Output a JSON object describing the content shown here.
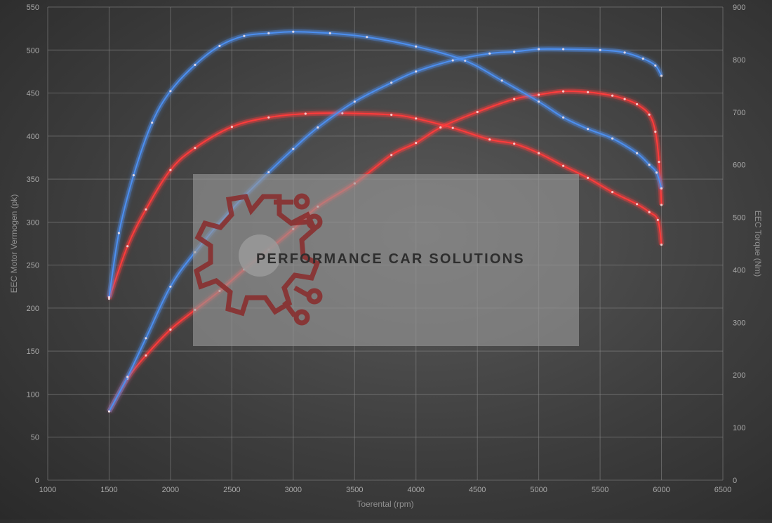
{
  "chart_data": {
    "type": "line",
    "xlabel": "Toerental (rpm)",
    "ylabel": "EEC Motor Vermogen (pk)",
    "y2label": "EEC Torque (Nm)",
    "xlim": [
      1000,
      6500
    ],
    "ylim": [
      0,
      550
    ],
    "y2lim": [
      0,
      900
    ],
    "x_ticks": [
      "1000",
      "1500",
      "2000",
      "2500",
      "3000",
      "3500",
      "4000",
      "4500",
      "5000",
      "5500",
      "6000",
      "6500"
    ],
    "y_ticks": [
      "0",
      "50",
      "100",
      "150",
      "200",
      "250",
      "300",
      "350",
      "400",
      "450",
      "500",
      "550"
    ],
    "y2_ticks": [
      "0",
      "100",
      "200",
      "300",
      "400",
      "500",
      "600",
      "700",
      "800",
      "900"
    ],
    "grid": true,
    "series": [
      {
        "color": "#ff3b3b",
        "axis": "right",
        "x": [
          1500,
          1650,
          1800,
          2000,
          2200,
          2500,
          2800,
          3100,
          3400,
          3800,
          4000,
          4300,
          4600,
          4800,
          5000,
          5200,
          5400,
          5600,
          5800,
          5900,
          5970,
          6000
        ],
        "values": [
          345,
          445,
          515,
          590,
          632,
          672,
          690,
          697,
          698,
          695,
          688,
          670,
          648,
          640,
          622,
          598,
          575,
          548,
          525,
          510,
          495,
          448
        ]
      },
      {
        "color": "#ff3b3b",
        "axis": "left",
        "x": [
          1500,
          1650,
          1800,
          2000,
          2200,
          2400,
          2600,
          2800,
          3000,
          3200,
          3500,
          3800,
          4000,
          4200,
          4500,
          4800,
          5000,
          5200,
          5400,
          5600,
          5700,
          5800,
          5900,
          5950,
          5980,
          6000
        ],
        "values": [
          80,
          118,
          145,
          175,
          198,
          220,
          245,
          268,
          292,
          318,
          345,
          378,
          392,
          410,
          428,
          443,
          448,
          452,
          451,
          447,
          443,
          437,
          425,
          405,
          370,
          320
        ]
      },
      {
        "color": "#4c8ff0",
        "axis": "right",
        "x": [
          1500,
          1580,
          1700,
          1850,
          2000,
          2200,
          2400,
          2600,
          2800,
          3000,
          3300,
          3600,
          4000,
          4400,
          4700,
          5000,
          5200,
          5400,
          5600,
          5800,
          5900,
          5960,
          6000
        ],
        "values": [
          348,
          470,
          580,
          680,
          740,
          790,
          826,
          845,
          850,
          853,
          850,
          843,
          825,
          798,
          760,
          720,
          690,
          668,
          650,
          622,
          600,
          585,
          555
        ]
      },
      {
        "color": "#4c8ff0",
        "axis": "left",
        "x": [
          1500,
          1650,
          1800,
          2000,
          2200,
          2500,
          2800,
          3000,
          3200,
          3500,
          3800,
          4000,
          4300,
          4600,
          4800,
          5000,
          5200,
          5500,
          5700,
          5850,
          5950,
          6000
        ],
        "values": [
          80,
          120,
          165,
          225,
          265,
          315,
          358,
          385,
          410,
          440,
          462,
          475,
          488,
          496,
          498,
          501,
          501,
          500,
          497,
          490,
          482,
          470
        ]
      }
    ]
  },
  "logo": {
    "text": "PERFORMANCE CAR SOLUTIONS",
    "gear_color": "#8a2b2b",
    "box_color": "#9a9a9a"
  }
}
